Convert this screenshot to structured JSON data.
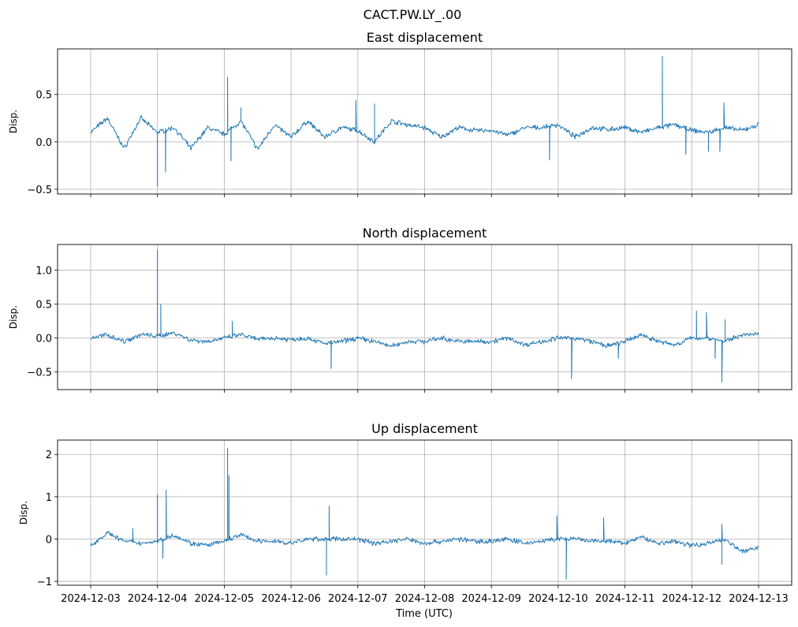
{
  "chart_data": {
    "type": "line",
    "title": "CACT.PW.LY_.00",
    "xlabel": "Time (UTC)",
    "x_tick_labels": [
      "2024-12-03",
      "2024-12-04",
      "2024-12-05",
      "2024-12-06",
      "2024-12-07",
      "2024-12-08",
      "2024-12-09",
      "2024-12-10",
      "2024-12-11",
      "2024-12-12",
      "2024-12-13"
    ],
    "xlim_days": [
      -0.5,
      10.5
    ],
    "sample_step_days": 0.25,
    "color": "#1f77b4",
    "grid": true,
    "panels": [
      {
        "title": "East displacement",
        "ylabel": "Disp.",
        "ylim": [
          -0.55,
          0.98
        ],
        "yticks": [
          0.5,
          0.0,
          -0.5
        ],
        "ytick_labels": [
          "0.5",
          "0.0",
          "−0.5"
        ],
        "values": [
          0.1,
          0.25,
          -0.07,
          0.25,
          0.1,
          0.15,
          -0.07,
          0.15,
          0.08,
          0.22,
          -0.08,
          0.18,
          0.05,
          0.22,
          0.05,
          0.15,
          0.12,
          0.0,
          0.22,
          0.18,
          0.15,
          0.05,
          0.15,
          0.12,
          0.12,
          0.07,
          0.15,
          0.15,
          0.18,
          0.05,
          0.15,
          0.13,
          0.15,
          0.1,
          0.15,
          0.18,
          0.12,
          0.1,
          0.15,
          0.12,
          0.18
        ],
        "spikes": [
          [
            1.0,
            -0.47
          ],
          [
            1.12,
            -0.32
          ],
          [
            2.05,
            0.68
          ],
          [
            2.1,
            -0.2
          ],
          [
            2.25,
            0.36
          ],
          [
            3.97,
            0.44
          ],
          [
            4.25,
            0.4
          ],
          [
            6.87,
            -0.19
          ],
          [
            8.56,
            0.9
          ],
          [
            8.91,
            -0.13
          ],
          [
            9.25,
            -0.1
          ],
          [
            9.48,
            0.41
          ],
          [
            9.42,
            -0.1
          ]
        ]
      },
      {
        "title": "North displacement",
        "ylabel": "Disp.",
        "ylim": [
          -0.76,
          1.38
        ],
        "yticks": [
          1.0,
          0.5,
          0.0,
          -0.5
        ],
        "ytick_labels": [
          "1.0",
          "0.5",
          "0.0",
          "−0.5"
        ],
        "values": [
          0.0,
          0.05,
          -0.05,
          0.05,
          0.03,
          0.08,
          -0.03,
          -0.05,
          0.0,
          0.05,
          -0.02,
          0.0,
          -0.02,
          0.0,
          -0.08,
          -0.05,
          0.0,
          -0.05,
          -0.12,
          -0.05,
          -0.05,
          0.0,
          -0.05,
          -0.05,
          -0.05,
          0.0,
          -0.1,
          -0.05,
          0.0,
          0.0,
          -0.05,
          -0.12,
          -0.05,
          0.05,
          -0.05,
          -0.1,
          0.0,
          0.0,
          -0.05,
          0.05,
          0.05
        ],
        "spikes": [
          [
            1.0,
            1.3
          ],
          [
            1.05,
            0.5
          ],
          [
            2.12,
            0.25
          ],
          [
            3.6,
            -0.45
          ],
          [
            7.2,
            -0.6
          ],
          [
            7.9,
            -0.3
          ],
          [
            9.07,
            0.4
          ],
          [
            9.22,
            0.38
          ],
          [
            9.35,
            -0.3
          ],
          [
            9.45,
            -0.65
          ],
          [
            9.5,
            0.27
          ]
        ]
      },
      {
        "title": "Up displacement",
        "ylabel": "Disp.",
        "ylim": [
          -1.09,
          2.34
        ],
        "yticks": [
          2,
          1,
          0,
          -1
        ],
        "ytick_labels": [
          "2",
          "1",
          "0",
          "−1"
        ],
        "values": [
          -0.15,
          0.15,
          -0.05,
          -0.1,
          -0.05,
          0.1,
          -0.1,
          -0.15,
          -0.05,
          0.1,
          -0.05,
          -0.05,
          -0.1,
          0.0,
          0.0,
          0.0,
          0.0,
          -0.1,
          -0.05,
          0.0,
          -0.1,
          -0.05,
          0.0,
          -0.05,
          -0.05,
          0.0,
          -0.1,
          -0.05,
          0.0,
          0.0,
          -0.05,
          -0.05,
          -0.1,
          0.05,
          -0.1,
          -0.05,
          -0.15,
          -0.1,
          0.0,
          -0.3,
          -0.2
        ],
        "spikes": [
          [
            0.63,
            0.25
          ],
          [
            1.0,
            1.05
          ],
          [
            1.08,
            -0.45
          ],
          [
            1.13,
            1.15
          ],
          [
            2.05,
            2.15
          ],
          [
            2.07,
            1.5
          ],
          [
            3.53,
            -0.85
          ],
          [
            3.57,
            0.78
          ],
          [
            6.98,
            0.55
          ],
          [
            7.12,
            -0.95
          ],
          [
            7.68,
            0.5
          ],
          [
            9.45,
            0.35
          ],
          [
            9.45,
            -0.6
          ]
        ]
      }
    ]
  }
}
